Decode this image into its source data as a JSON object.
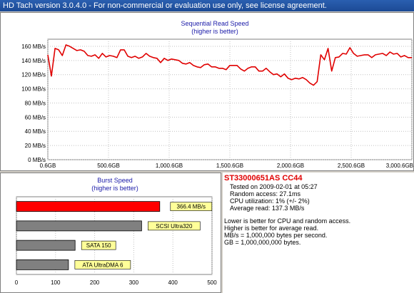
{
  "window": {
    "title": "HD Tach version 3.0.4.0  - For non-commercial or evaluation use only, see license agreement."
  },
  "read_chart": {
    "title": "Sequential Read Speed",
    "subtitle": "(higher is better)",
    "y_ticks": [
      "0 MB/s",
      "20 MB/s",
      "40 MB/s",
      "60 MB/s",
      "80 MB/s",
      "100 MB/s",
      "120 MB/s",
      "140 MB/s",
      "160 MB/s"
    ],
    "x_ticks": [
      "0.6GB",
      "500.6GB",
      "1,000.6GB",
      "1,500.6GB",
      "2,000.6GB",
      "2,500.6GB",
      "3,000.6GB"
    ],
    "line_color": "#e00000"
  },
  "burst_chart": {
    "title": "Burst Speed",
    "subtitle": "(higher is better)",
    "x_ticks": [
      "0",
      "100",
      "200",
      "300",
      "400",
      "500"
    ]
  },
  "chart_data": [
    {
      "type": "line",
      "title": "Sequential Read Speed",
      "subtitle": "(higher is better)",
      "xlabel": "",
      "ylabel": "",
      "xlim": [
        0.6,
        3000.6
      ],
      "ylim": [
        0,
        170
      ],
      "grid": true,
      "series": [
        {
          "color": "#e00000",
          "x": [
            0.6,
            30,
            60,
            90,
            120,
            150,
            180,
            210,
            240,
            270,
            300,
            330,
            360,
            390,
            420,
            450,
            480,
            510,
            540,
            570,
            600,
            630,
            660,
            690,
            720,
            750,
            780,
            810,
            840,
            870,
            900,
            930,
            960,
            990,
            1020,
            1050,
            1080,
            1110,
            1140,
            1170,
            1200,
            1230,
            1260,
            1290,
            1320,
            1350,
            1380,
            1410,
            1440,
            1470,
            1500,
            1530,
            1560,
            1590,
            1620,
            1650,
            1680,
            1710,
            1740,
            1770,
            1800,
            1830,
            1860,
            1890,
            1920,
            1950,
            1980,
            2010,
            2040,
            2070,
            2100,
            2130,
            2160,
            2190,
            2220,
            2250,
            2280,
            2310,
            2340,
            2370,
            2400,
            2430,
            2460,
            2490,
            2520,
            2550,
            2580,
            2610,
            2640,
            2670,
            2700,
            2730,
            2760,
            2790,
            2820,
            2850,
            2880,
            2910,
            2940,
            2970,
            3000.6
          ],
          "y": [
            148,
            118,
            157,
            155,
            147,
            162,
            160,
            157,
            154,
            155,
            153,
            147,
            146,
            148,
            143,
            150,
            145,
            147,
            146,
            144,
            155,
            155,
            146,
            144,
            146,
            143,
            145,
            150,
            146,
            144,
            143,
            137,
            143,
            140,
            142,
            141,
            140,
            136,
            135,
            137,
            133,
            131,
            130,
            134,
            135,
            131,
            131,
            129,
            129,
            127,
            133,
            133,
            133,
            128,
            125,
            129,
            131,
            131,
            125,
            125,
            129,
            124,
            120,
            121,
            117,
            121,
            115,
            113,
            115,
            114,
            116,
            113,
            108,
            105,
            110,
            148,
            141,
            157,
            125,
            144,
            145,
            150,
            149,
            158,
            150,
            146,
            147,
            148,
            148,
            144,
            148,
            149,
            150,
            147,
            152,
            149,
            150,
            145,
            147,
            144,
            144
          ]
        }
      ]
    },
    {
      "type": "bar",
      "title": "Burst Speed",
      "subtitle": "(higher is better)",
      "xlim": [
        0,
        500
      ],
      "categories": [
        "366.4 MB/s",
        "SCSI Ultra320",
        "SATA 150",
        "ATA UltraDMA 6"
      ],
      "values": [
        366.4,
        320,
        150,
        133
      ],
      "colors": [
        "#ff0000",
        "#808080",
        "#808080",
        "#808080"
      ],
      "label_bg": "#ffff99"
    }
  ],
  "info": {
    "drive": "ST33000651AS CC44",
    "tested": "Tested on 2009-02-01 at 05:27",
    "random_access": "Random access: 27.1ms",
    "cpu": "CPU utilization: 1% (+/- 2%)",
    "avg_read": "Average read: 137.3 MB/s",
    "notes": [
      "Lower is better for CPU and random access.",
      "Higher is better for average read.",
      "MB/s = 1,000,000 bytes per second.",
      "GB = 1,000,000,000 bytes."
    ]
  }
}
